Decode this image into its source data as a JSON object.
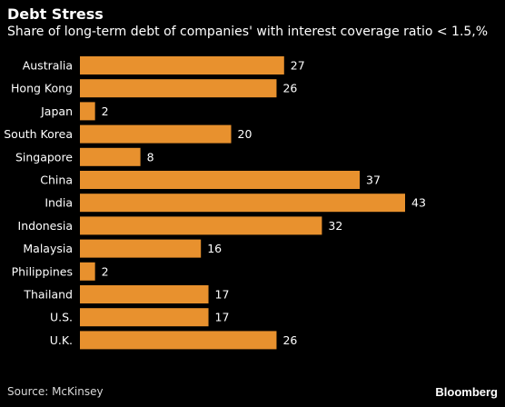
{
  "header": {
    "title": "Debt Stress",
    "subtitle": "Share of long-term debt of companies' with interest coverage ratio < 1.5,%"
  },
  "footer": {
    "source": "Source: McKinsey",
    "brand": "Bloomberg"
  },
  "colors": {
    "bar": "#e8912e",
    "background": "#000000",
    "text": "#ffffff"
  },
  "chart_data": {
    "type": "bar",
    "orientation": "horizontal",
    "title": "Debt Stress",
    "subtitle": "Share of long-term debt of companies' with interest coverage ratio < 1.5,%",
    "categories": [
      "Australia",
      "Hong Kong",
      "Japan",
      "South Korea",
      "Singapore",
      "China",
      "India",
      "Indonesia",
      "Malaysia",
      "Philippines",
      "Thailand",
      "U.S.",
      "U.K."
    ],
    "values": [
      27,
      26,
      2,
      20,
      8,
      37,
      43,
      32,
      16,
      2,
      17,
      17,
      26
    ],
    "data_labels": [
      "27",
      "26",
      "2",
      "20",
      "8",
      "37",
      "43",
      "32",
      "16",
      "2",
      "17",
      "17",
      "26"
    ],
    "xlim": [
      0,
      43
    ],
    "grid": false,
    "legend": "none"
  }
}
